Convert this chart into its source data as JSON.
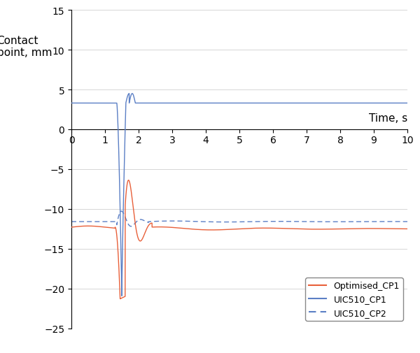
{
  "ylabel": "Contact\npoint, mm",
  "xlabel": "Time, s",
  "xlim": [
    0,
    10
  ],
  "ylim": [
    -25,
    15
  ],
  "yticks": [
    -25,
    -20,
    -15,
    -10,
    -5,
    0,
    5,
    10,
    15
  ],
  "xticks": [
    0,
    1,
    2,
    3,
    4,
    5,
    6,
    7,
    8,
    9,
    10
  ],
  "bg_color": "#ffffff",
  "grid_color": "#d0d0d0",
  "opt_cp1_color": "#e8603a",
  "uic_cp1_color": "#5b7fc5",
  "uic_cp2_color": "#5b7fc5",
  "legend_labels": [
    "Optimised_CP1",
    "UIC510_CP1",
    "UIC510_CP2"
  ],
  "opt_baseline": -12.3,
  "uic_cp1_baseline": 3.3,
  "uic_cp2_baseline": -11.6
}
